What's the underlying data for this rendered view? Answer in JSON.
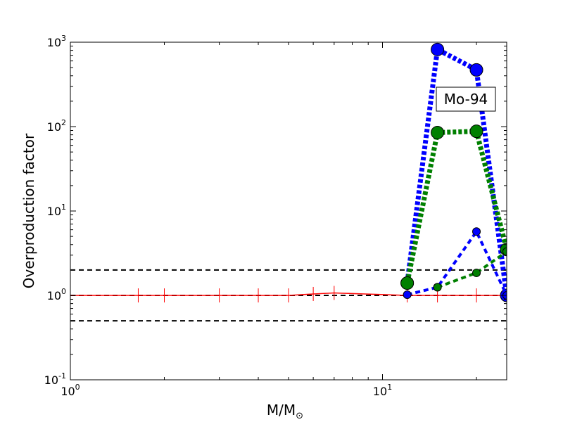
{
  "chart_data": {
    "type": "line",
    "title": "",
    "xlabel": "M/M",
    "xlabel_sub": "⊙",
    "ylabel": "Overproduction factor",
    "xscale": "log",
    "yscale": "log",
    "xlim": [
      1,
      25
    ],
    "ylim": [
      0.1,
      1000
    ],
    "x_ticks": [
      {
        "base": "10",
        "exp": "0",
        "value": 1
      },
      {
        "base": "10",
        "exp": "1",
        "value": 10
      }
    ],
    "y_ticks": [
      {
        "base": "10",
        "exp": "-1",
        "value": 0.1
      },
      {
        "base": "10",
        "exp": "0",
        "value": 1
      },
      {
        "base": "10",
        "exp": "1",
        "value": 10
      },
      {
        "base": "10",
        "exp": "2",
        "value": 100
      },
      {
        "base": "10",
        "exp": "3",
        "value": 1000
      }
    ],
    "annotation": "Mo-94",
    "reference_lines": [
      {
        "y": 2.0,
        "color": "#000000",
        "style": "dashed"
      },
      {
        "y": 1.0,
        "color": "#000000",
        "style": "dashed"
      },
      {
        "y": 0.5,
        "color": "#000000",
        "style": "dashed"
      }
    ],
    "series": [
      {
        "color": "#ff0000",
        "style": "solid",
        "marker": "plus",
        "x": [
          1.0,
          1.65,
          2.0,
          3.0,
          4.0,
          5.0,
          6.0,
          7.0,
          12.0,
          15.0,
          20.0,
          25.0
        ],
        "y": [
          1.0,
          1.0,
          1.0,
          1.0,
          1.0,
          1.0,
          1.04,
          1.07,
          1.0,
          1.0,
          1.0,
          1.0
        ]
      },
      {
        "color": "#0000ff",
        "style": "dotted-thick",
        "marker": "circle-large",
        "x": [
          12.0,
          15.0,
          20.0,
          25.0
        ],
        "y": [
          1.4,
          820.0,
          470.0,
          1.0
        ]
      },
      {
        "color": "#008000",
        "style": "dotted-thick",
        "marker": "circle-large",
        "x": [
          12.0,
          15.0,
          20.0,
          25.0
        ],
        "y": [
          1.4,
          85.0,
          88.0,
          3.5
        ]
      },
      {
        "color": "#0000ff",
        "style": "dashed",
        "marker": "circle-small",
        "x": [
          12.0,
          15.0,
          20.0,
          25.0
        ],
        "y": [
          1.02,
          1.25,
          5.7,
          1.0
        ]
      },
      {
        "color": "#008000",
        "style": "dashed",
        "marker": "circle-small",
        "x": [
          15.0,
          20.0,
          25.0
        ],
        "y": [
          1.25,
          1.85,
          3.3
        ]
      }
    ]
  }
}
